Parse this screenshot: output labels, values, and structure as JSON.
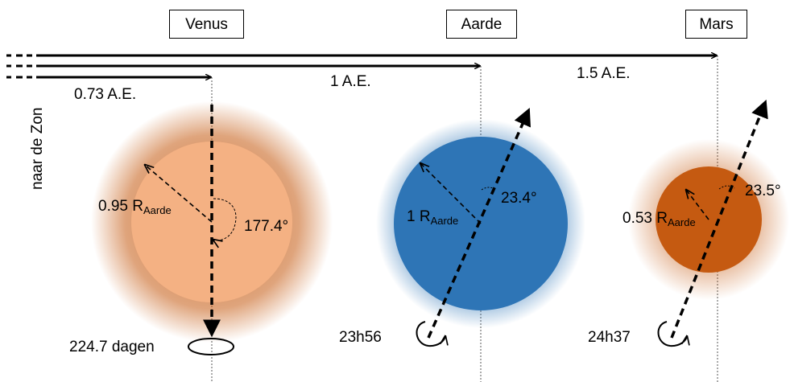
{
  "planets": [
    {
      "name": "Venus",
      "distance": "0.73 A.E.",
      "radius_prefix": "0.95 R",
      "radius_sub": "Aarde",
      "tilt": "177.4°",
      "period": "224.7 dagen",
      "color": "#f4b183",
      "glow_color": "#c55a11"
    },
    {
      "name": "Aarde",
      "distance": "1 A.E.",
      "radius_prefix": "1 R",
      "radius_sub": "Aarde",
      "tilt": "23.4°",
      "period": "23h56",
      "color": "#2e75b6",
      "glow_color": "#2e75b6"
    },
    {
      "name": "Mars",
      "distance": "1.5 A.E.",
      "radius_prefix": "0.53 R",
      "radius_sub": "Aarde",
      "tilt": "23.5°",
      "period": "24h37",
      "color": "#c55a11",
      "glow_color": "#c55a11"
    }
  ],
  "sun_label": "naar de Zon"
}
